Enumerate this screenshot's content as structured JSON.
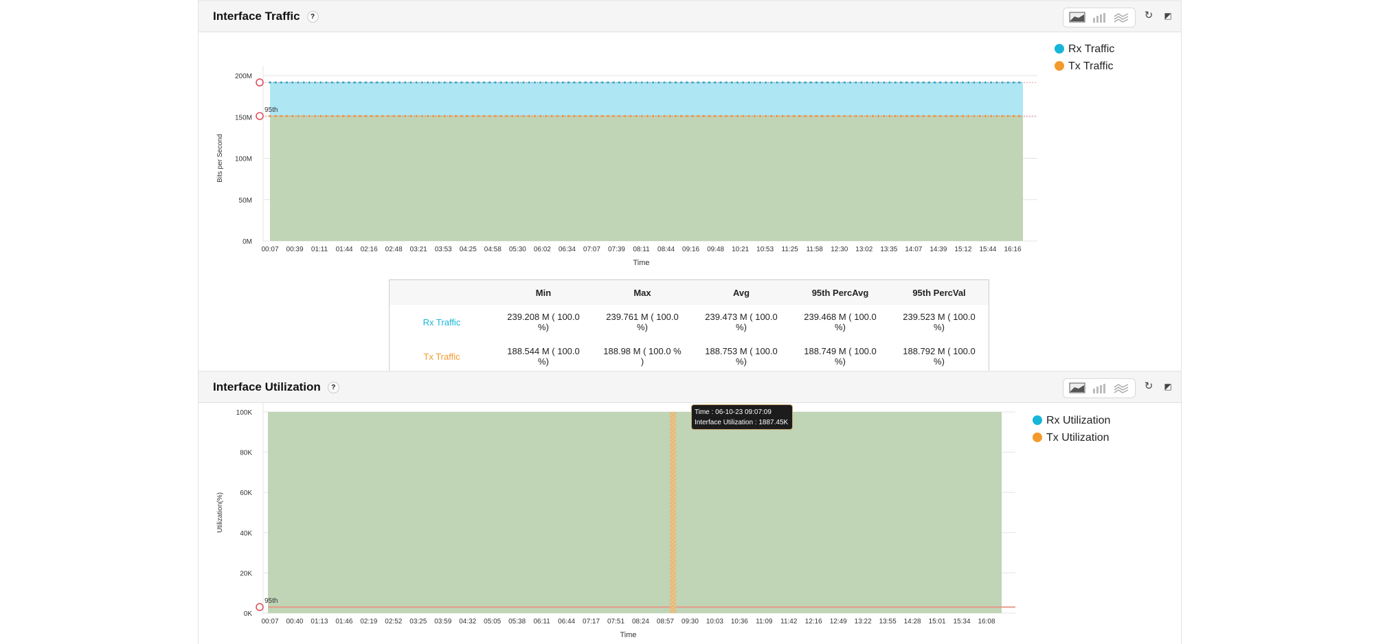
{
  "panels": [
    {
      "title": "Interface Traffic",
      "help": "?",
      "legend": [
        {
          "label": "Rx Traffic",
          "color": "#17b6d8"
        },
        {
          "label": "Tx Traffic",
          "color": "#f39a2c"
        }
      ],
      "table": {
        "headers": [
          "",
          "Min",
          "Max",
          "Avg",
          "95th PercAvg",
          "95th PercVal"
        ],
        "rows": [
          {
            "label": "Rx Traffic",
            "color": "#17b6d8",
            "cells": [
              "239.208 M ( 100.0 %)",
              "239.761 M ( 100.0 %)",
              "239.473 M ( 100.0 %)",
              "239.468 M ( 100.0 %)",
              "239.523 M ( 100.0 %)"
            ]
          },
          {
            "label": "Tx Traffic",
            "color": "#f39a2c",
            "cells": [
              "188.544 M ( 100.0 %)",
              "188.98 M ( 100.0 % )",
              "188.753 M ( 100.0 %)",
              "188.749 M ( 100.0 %)",
              "188.792 M ( 100.0 %)"
            ]
          }
        ]
      }
    },
    {
      "title": "Interface Utilization",
      "help": "?",
      "legend": [
        {
          "label": "Rx Utilization",
          "color": "#17b6d8"
        },
        {
          "label": "Tx Utilization",
          "color": "#f39a2c"
        }
      ],
      "tooltip": {
        "line1": "Time : 06-10-23 09:07:09",
        "line2": "Interface Utilization : 1887.45K"
      }
    }
  ],
  "toolbar_icons": [
    "area-chart-icon",
    "bar-chart-icon",
    "line-chart-icon",
    "refresh-icon",
    "expand-icon"
  ],
  "chart_data": [
    {
      "type": "area",
      "xlabel": "Time",
      "ylabel": "Bits per Second",
      "ylim": [
        0,
        250000000
      ],
      "yticks": [
        "0M",
        "50M",
        "100M",
        "150M",
        "200M"
      ],
      "grid": true,
      "legend_position": "right",
      "percentile_label": "95th",
      "categories": [
        "00:07",
        "00:39",
        "01:11",
        "01:44",
        "02:16",
        "02:48",
        "03:21",
        "03:53",
        "04:25",
        "04:58",
        "05:30",
        "06:02",
        "06:34",
        "07:07",
        "07:39",
        "08:11",
        "08:44",
        "09:16",
        "09:48",
        "10:21",
        "10:53",
        "11:25",
        "11:58",
        "12:30",
        "13:02",
        "13:35",
        "14:07",
        "14:39",
        "15:12",
        "15:44",
        "16:16"
      ],
      "series": [
        {
          "name": "Rx Traffic",
          "color": "#17b6d8",
          "value_constant": 239473000,
          "percentile95": 239523000
        },
        {
          "name": "Tx Traffic",
          "color": "#f39a2c",
          "value_constant": 188753000,
          "percentile95": 188792000
        }
      ]
    },
    {
      "type": "area",
      "xlabel": "Time",
      "ylabel": "Utilization(%)",
      "ylim": [
        0,
        100000
      ],
      "yticks": [
        "0K",
        "20K",
        "40K",
        "60K",
        "80K",
        "100K"
      ],
      "grid": true,
      "legend_position": "right",
      "percentile_label": "95th",
      "categories": [
        "00:07",
        "00:40",
        "01:13",
        "01:46",
        "02:19",
        "02:52",
        "03:25",
        "03:59",
        "04:32",
        "05:05",
        "05:38",
        "06:11",
        "06:44",
        "07:17",
        "07:51",
        "08:24",
        "08:57",
        "09:30",
        "10:03",
        "10:36",
        "11:09",
        "11:42",
        "12:16",
        "12:49",
        "13:22",
        "13:55",
        "14:28",
        "15:01",
        "15:34",
        "16:08"
      ],
      "series": [
        {
          "name": "Rx Utilization",
          "color": "#17b6d8",
          "value_constant": 100000
        },
        {
          "name": "Tx Utilization",
          "color": "#f39a2c",
          "value_constant": 3000
        }
      ],
      "highlight_time": "09:07"
    }
  ]
}
